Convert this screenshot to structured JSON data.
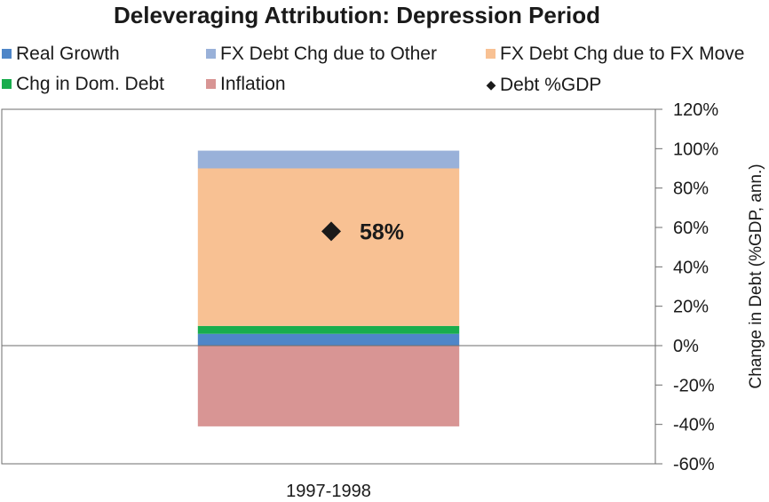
{
  "chart_data": {
    "type": "bar",
    "title": "Deleveraging Attribution: Depression Period",
    "categories": [
      "1997-1998"
    ],
    "ylabel": "Change in Debt (%GDP, ann.)",
    "ylim": [
      -0.6,
      1.2
    ],
    "yticks": [
      "120%",
      "100%",
      "80%",
      "60%",
      "40%",
      "20%",
      "0%",
      "-20%",
      "-40%",
      "-60%"
    ],
    "ytick_values": [
      1.2,
      1.0,
      0.8,
      0.6,
      0.4,
      0.2,
      0.0,
      -0.2,
      -0.4,
      -0.6
    ],
    "axis_position": "right",
    "grid": false,
    "legend_placement": "top",
    "stacked": true,
    "series": [
      {
        "name": "Real Growth",
        "color": "#4e86c8",
        "values": [
          0.06
        ]
      },
      {
        "name": "Chg in Dom. Debt",
        "color": "#19ad4d",
        "values": [
          0.04
        ]
      },
      {
        "name": "FX Debt Chg due to FX Move",
        "color": "#f8c193",
        "values": [
          0.8
        ]
      },
      {
        "name": "FX Debt Chg due to Other",
        "color": "#99b1d9",
        "values": [
          0.09
        ]
      },
      {
        "name": "Inflation",
        "color": "#d89594",
        "values": [
          -0.41
        ]
      }
    ],
    "markers": [
      {
        "name": "Debt %GDP",
        "values": [
          0.58
        ],
        "labels": [
          "58%"
        ],
        "color": "#1a1a1a"
      }
    ]
  }
}
